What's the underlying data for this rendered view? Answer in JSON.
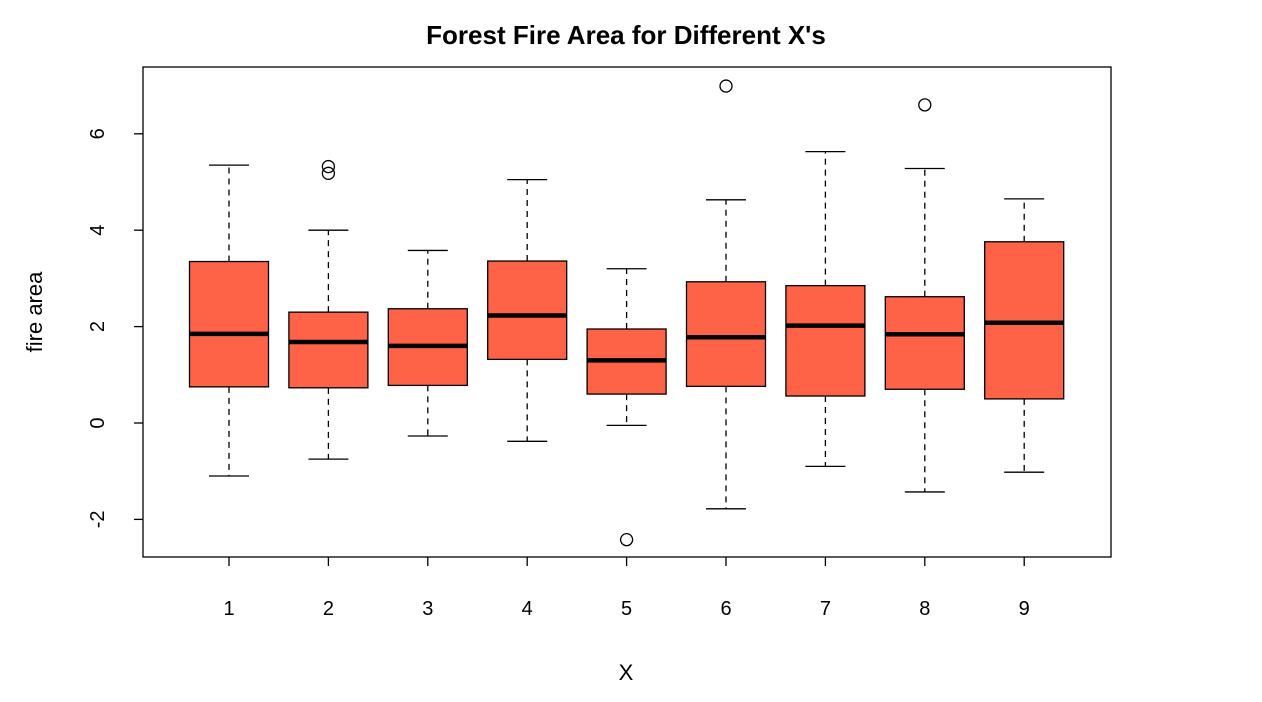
{
  "chart_data": {
    "type": "boxplot",
    "title": "Forest Fire Area for Different X's",
    "xlabel": "X",
    "ylabel": "fire area",
    "ylim": [
      -2.8,
      7.2
    ],
    "yticks": [
      -2,
      0,
      2,
      4,
      6
    ],
    "categories": [
      "1",
      "2",
      "3",
      "4",
      "5",
      "6",
      "7",
      "8",
      "9"
    ],
    "box_color": "#FF6347",
    "boxes": [
      {
        "category": "1",
        "whisker_low": -1.1,
        "q1": 0.75,
        "median": 1.85,
        "q3": 3.35,
        "whisker_high": 5.35,
        "outliers": []
      },
      {
        "category": "2",
        "whisker_low": -0.75,
        "q1": 0.73,
        "median": 1.68,
        "q3": 2.3,
        "whisker_high": 4.0,
        "outliers": [
          5.18,
          5.32
        ]
      },
      {
        "category": "3",
        "whisker_low": -0.27,
        "q1": 0.78,
        "median": 1.6,
        "q3": 2.37,
        "whisker_high": 3.58,
        "outliers": []
      },
      {
        "category": "4",
        "whisker_low": -0.38,
        "q1": 1.32,
        "median": 2.23,
        "q3": 3.36,
        "whisker_high": 5.05,
        "outliers": []
      },
      {
        "category": "5",
        "whisker_low": -0.05,
        "q1": 0.6,
        "median": 1.3,
        "q3": 1.95,
        "whisker_high": 3.2,
        "outliers": [
          -2.42
        ]
      },
      {
        "category": "6",
        "whisker_low": -1.78,
        "q1": 0.76,
        "median": 1.78,
        "q3": 2.93,
        "whisker_high": 4.63,
        "outliers": [
          6.99
        ]
      },
      {
        "category": "7",
        "whisker_low": -0.9,
        "q1": 0.56,
        "median": 2.02,
        "q3": 2.85,
        "whisker_high": 5.63,
        "outliers": []
      },
      {
        "category": "8",
        "whisker_low": -1.43,
        "q1": 0.7,
        "median": 1.84,
        "q3": 2.62,
        "whisker_high": 5.28,
        "outliers": [
          6.6
        ]
      },
      {
        "category": "9",
        "whisker_low": -1.02,
        "q1": 0.5,
        "median": 2.08,
        "q3": 3.76,
        "whisker_high": 4.65,
        "outliers": []
      }
    ]
  }
}
